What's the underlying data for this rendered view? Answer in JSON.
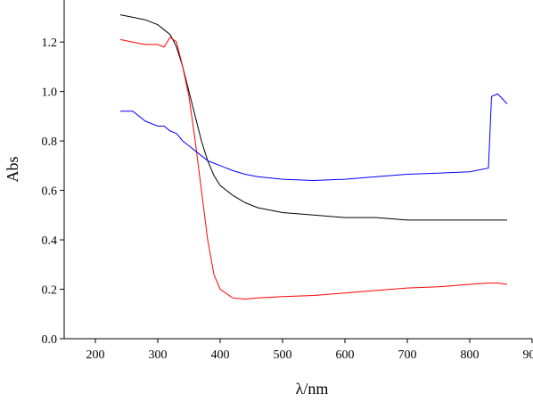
{
  "chart_data": {
    "type": "line",
    "x_label": "λ/nm",
    "y_label": "Abs",
    "x": [
      240,
      260,
      280,
      300,
      310,
      320,
      330,
      340,
      350,
      360,
      370,
      380,
      390,
      400,
      420,
      440,
      460,
      500,
      550,
      600,
      650,
      700,
      750,
      800,
      830,
      835,
      845,
      860
    ],
    "series": [
      {
        "color": "#000000",
        "values": [
          1.31,
          1.3,
          1.29,
          1.27,
          1.25,
          1.23,
          1.18,
          1.1,
          1.0,
          0.9,
          0.8,
          0.72,
          0.66,
          0.62,
          0.58,
          0.55,
          0.53,
          0.51,
          0.5,
          0.49,
          0.49,
          0.48,
          0.48,
          0.48,
          0.48,
          0.48,
          0.48,
          0.48
        ]
      },
      {
        "color": "#ff0000",
        "values": [
          1.21,
          1.2,
          1.19,
          1.19,
          1.18,
          1.22,
          1.2,
          1.1,
          0.98,
          0.8,
          0.6,
          0.4,
          0.26,
          0.2,
          0.165,
          0.16,
          0.165,
          0.17,
          0.175,
          0.185,
          0.195,
          0.205,
          0.21,
          0.22,
          0.225,
          0.225,
          0.225,
          0.22
        ]
      },
      {
        "color": "#0000ff",
        "values": [
          0.92,
          0.92,
          0.88,
          0.86,
          0.86,
          0.84,
          0.83,
          0.8,
          0.78,
          0.76,
          0.74,
          0.72,
          0.71,
          0.7,
          0.68,
          0.665,
          0.655,
          0.645,
          0.64,
          0.645,
          0.655,
          0.665,
          0.67,
          0.675,
          0.69,
          0.98,
          0.99,
          0.95
        ]
      }
    ],
    "xlim": [
      150,
      900
    ],
    "ylim": [
      0,
      1.37
    ],
    "xticks": [
      200,
      300,
      400,
      500,
      600,
      700,
      800,
      900
    ],
    "yticks": [
      {
        "value": 0,
        "label": "0.0"
      },
      0.2,
      0.4,
      0.6,
      0.8,
      {
        "value": 1,
        "label": "1.0"
      },
      1.2
    ],
    "grid": false
  }
}
